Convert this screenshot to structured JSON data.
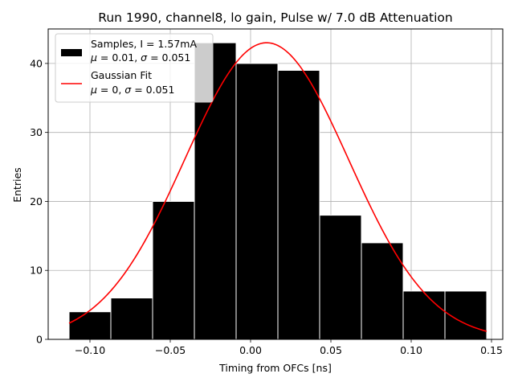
{
  "chart_data": {
    "type": "bar",
    "title": "Run 1990, channel8, lo gain, Pulse w/ 7.0 dB Attenuation",
    "xlabel": "Timing from OFCs [ns]",
    "ylabel": "Entries",
    "xlim": [
      -0.126,
      0.157
    ],
    "ylim": [
      0,
      45
    ],
    "grid": true,
    "x_ticks": [
      -0.1,
      -0.05,
      0.0,
      0.05,
      0.1,
      0.15
    ],
    "x_tick_labels": [
      "−0.10",
      "−0.05",
      "0.00",
      "0.05",
      "0.10",
      "0.15"
    ],
    "y_ticks": [
      0,
      10,
      20,
      30,
      40
    ],
    "y_tick_labels": [
      "0",
      "10",
      "20",
      "30",
      "40"
    ],
    "histogram": {
      "name": "Samples",
      "color": "#000000",
      "edge_color": "#ffffff",
      "bins": [
        {
          "x0": -0.113,
          "x1": -0.087,
          "count": 4
        },
        {
          "x0": -0.087,
          "x1": -0.061,
          "count": 6
        },
        {
          "x0": -0.061,
          "x1": -0.035,
          "count": 20
        },
        {
          "x0": -0.035,
          "x1": -0.009,
          "count": 43
        },
        {
          "x0": -0.009,
          "x1": 0.017,
          "count": 40
        },
        {
          "x0": 0.017,
          "x1": 0.043,
          "count": 39
        },
        {
          "x0": 0.043,
          "x1": 0.069,
          "count": 18
        },
        {
          "x0": 0.069,
          "x1": 0.095,
          "count": 14
        },
        {
          "x0": 0.095,
          "x1": 0.121,
          "count": 7
        },
        {
          "x0": 0.121,
          "x1": 0.147,
          "count": 7
        }
      ]
    },
    "fit": {
      "name": "Gaussian Fit",
      "color": "#ff0000",
      "amplitude": 43,
      "mean": 0.01,
      "sigma": 0.051,
      "x_range": [
        -0.113,
        0.147
      ]
    },
    "legend": {
      "position": "top-left",
      "entries": [
        {
          "line1": "Samples, I = 1.57mA",
          "line2_prefix": "",
          "mu_val": "0.01",
          "sigma_val": "0.051"
        },
        {
          "line1": "Gaussian Fit",
          "line2_prefix": "",
          "mu_val": "0",
          "sigma_val": "0.051"
        }
      ]
    }
  }
}
